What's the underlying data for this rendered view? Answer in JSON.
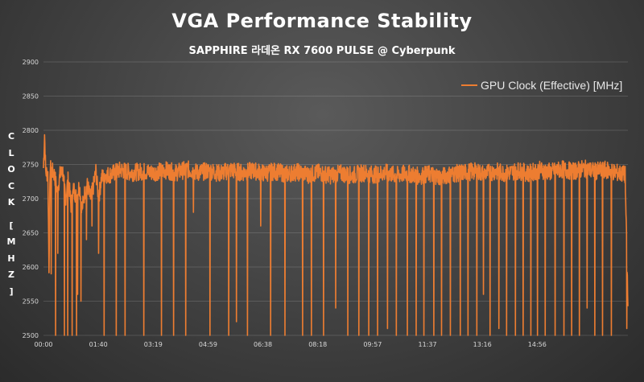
{
  "chart_data": {
    "type": "line",
    "title": "VGA Performance Stability",
    "subtitle": "SAPPHIRE 라데온 RX 7600 PULSE @ Cyberpunk",
    "ylabel": "CLOCK [MHZ]",
    "xlabel": "",
    "ylim": [
      2500,
      2900
    ],
    "yticks": [
      2500,
      2550,
      2600,
      2650,
      2700,
      2750,
      2800,
      2850,
      2900
    ],
    "xlim_seconds": [
      0,
      1060
    ],
    "xtick_labels": [
      "00:00",
      "01:40",
      "03:19",
      "04:59",
      "06:38",
      "08:18",
      "09:57",
      "11:37",
      "13:16",
      "14:56"
    ],
    "grid": true,
    "legend_position": "top-right",
    "series": [
      {
        "name": "GPU Clock (Effective) [MHz]",
        "color": "#ed7d31",
        "points": [
          [
            0,
            2745
          ],
          [
            2,
            2795
          ],
          [
            4,
            2740
          ],
          [
            8,
            2735
          ],
          [
            10,
            2600
          ],
          [
            12,
            2745
          ],
          [
            16,
            2740
          ],
          [
            20,
            2735
          ],
          [
            25,
            2710
          ],
          [
            30,
            2735
          ],
          [
            35,
            2740
          ],
          [
            40,
            2700
          ],
          [
            45,
            2730
          ],
          [
            50,
            2690
          ],
          [
            55,
            2715
          ],
          [
            60,
            2700
          ],
          [
            65,
            2720
          ],
          [
            70,
            2685
          ],
          [
            75,
            2710
          ],
          [
            80,
            2720
          ],
          [
            85,
            2700
          ],
          [
            90,
            2715
          ],
          [
            95,
            2740
          ],
          [
            100,
            2700
          ],
          [
            105,
            2730
          ],
          [
            110,
            2735
          ],
          [
            120,
            2735
          ],
          [
            140,
            2742
          ],
          [
            160,
            2738
          ],
          [
            180,
            2740
          ],
          [
            200,
            2738
          ],
          [
            220,
            2742
          ],
          [
            240,
            2738
          ],
          [
            260,
            2743
          ],
          [
            280,
            2738
          ],
          [
            300,
            2741
          ],
          [
            320,
            2737
          ],
          [
            340,
            2742
          ],
          [
            360,
            2738
          ],
          [
            380,
            2741
          ],
          [
            400,
            2737
          ],
          [
            420,
            2740
          ],
          [
            440,
            2736
          ],
          [
            460,
            2739
          ],
          [
            480,
            2735
          ],
          [
            500,
            2738
          ],
          [
            520,
            2734
          ],
          [
            540,
            2737
          ],
          [
            560,
            2734
          ],
          [
            580,
            2738
          ],
          [
            600,
            2735
          ],
          [
            620,
            2738
          ],
          [
            640,
            2734
          ],
          [
            660,
            2737
          ],
          [
            680,
            2733
          ],
          [
            700,
            2736
          ],
          [
            720,
            2732
          ],
          [
            740,
            2736
          ],
          [
            760,
            2738
          ],
          [
            780,
            2740
          ],
          [
            800,
            2737
          ],
          [
            820,
            2740
          ],
          [
            840,
            2737
          ],
          [
            860,
            2741
          ],
          [
            880,
            2737
          ],
          [
            900,
            2742
          ],
          [
            920,
            2739
          ],
          [
            940,
            2743
          ],
          [
            960,
            2740
          ],
          [
            980,
            2744
          ],
          [
            1000,
            2740
          ],
          [
            1020,
            2742
          ],
          [
            1040,
            2738
          ],
          [
            1055,
            2735
          ],
          [
            1060,
            2540
          ]
        ],
        "dips": [
          [
            14,
            2590
          ],
          [
            22,
            2500
          ],
          [
            26,
            2620
          ],
          [
            38,
            2500
          ],
          [
            44,
            2500
          ],
          [
            52,
            2500
          ],
          [
            60,
            2500
          ],
          [
            62,
            2560
          ],
          [
            68,
            2550
          ],
          [
            78,
            2640
          ],
          [
            88,
            2660
          ],
          [
            100,
            2620
          ],
          [
            110,
            2500
          ],
          [
            132,
            2500
          ],
          [
            148,
            2500
          ],
          [
            182,
            2500
          ],
          [
            214,
            2500
          ],
          [
            236,
            2500
          ],
          [
            258,
            2500
          ],
          [
            272,
            2680
          ],
          [
            302,
            2500
          ],
          [
            336,
            2500
          ],
          [
            350,
            2520
          ],
          [
            370,
            2500
          ],
          [
            394,
            2660
          ],
          [
            412,
            2500
          ],
          [
            438,
            2500
          ],
          [
            470,
            2500
          ],
          [
            486,
            2500
          ],
          [
            508,
            2500
          ],
          [
            530,
            2540
          ],
          [
            552,
            2500
          ],
          [
            572,
            2500
          ],
          [
            590,
            2500
          ],
          [
            606,
            2500
          ],
          [
            624,
            2510
          ],
          [
            640,
            2500
          ],
          [
            660,
            2500
          ],
          [
            676,
            2500
          ],
          [
            690,
            2500
          ],
          [
            708,
            2500
          ],
          [
            722,
            2500
          ],
          [
            738,
            2500
          ],
          [
            756,
            2500
          ],
          [
            770,
            2500
          ],
          [
            786,
            2500
          ],
          [
            798,
            2560
          ],
          [
            810,
            2500
          ],
          [
            826,
            2510
          ],
          [
            840,
            2500
          ],
          [
            856,
            2500
          ],
          [
            870,
            2500
          ],
          [
            884,
            2500
          ],
          [
            896,
            2500
          ],
          [
            910,
            2500
          ],
          [
            928,
            2500
          ],
          [
            944,
            2500
          ],
          [
            958,
            2500
          ],
          [
            972,
            2500
          ],
          [
            986,
            2540
          ],
          [
            1000,
            2500
          ],
          [
            1014,
            2500
          ],
          [
            1030,
            2500
          ],
          [
            1058,
            2510
          ]
        ]
      }
    ]
  }
}
